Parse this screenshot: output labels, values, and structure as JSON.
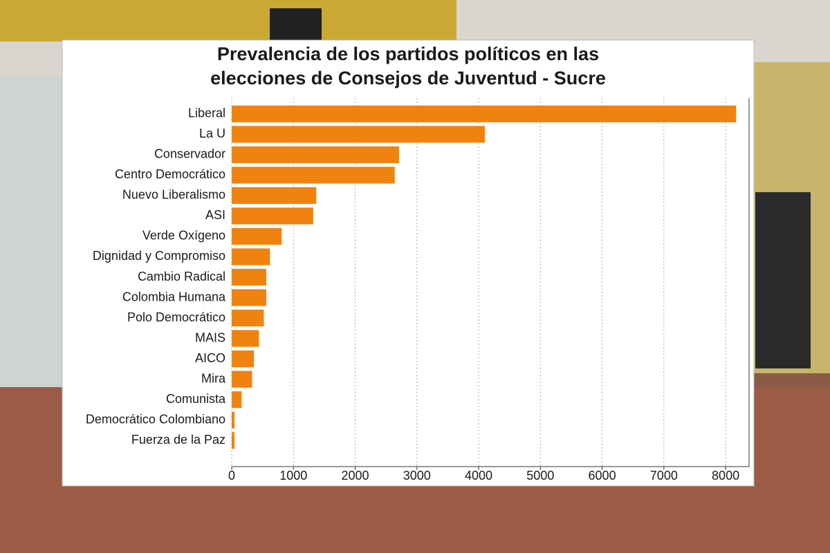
{
  "chart_data": {
    "type": "barh",
    "title": [
      "Prevalencia de los partidos políticos en las",
      "elecciones de Consejos de Juventud - Sucre"
    ],
    "categories": [
      "Liberal",
      "La U",
      "Conservador",
      "Centro Democrático",
      "Nuevo Liberalismo",
      "ASI",
      "Verde Oxígeno",
      "Dignidad y Compromiso",
      "Cambio Radical",
      "Colombia Humana",
      "Polo Democrático",
      "MAIS",
      "AICO",
      "Mira",
      "Comunista",
      "Democrático Colombiano",
      "Fuerza de la Paz"
    ],
    "values": [
      8170,
      4100,
      2710,
      2640,
      1370,
      1320,
      810,
      620,
      560,
      560,
      520,
      440,
      360,
      330,
      160,
      45,
      45
    ],
    "color": "#f0820f",
    "xlim": [
      0,
      8380
    ],
    "xticks": [
      0,
      1000,
      2000,
      3000,
      4000,
      5000,
      6000,
      7000,
      8000
    ],
    "grid": true
  }
}
